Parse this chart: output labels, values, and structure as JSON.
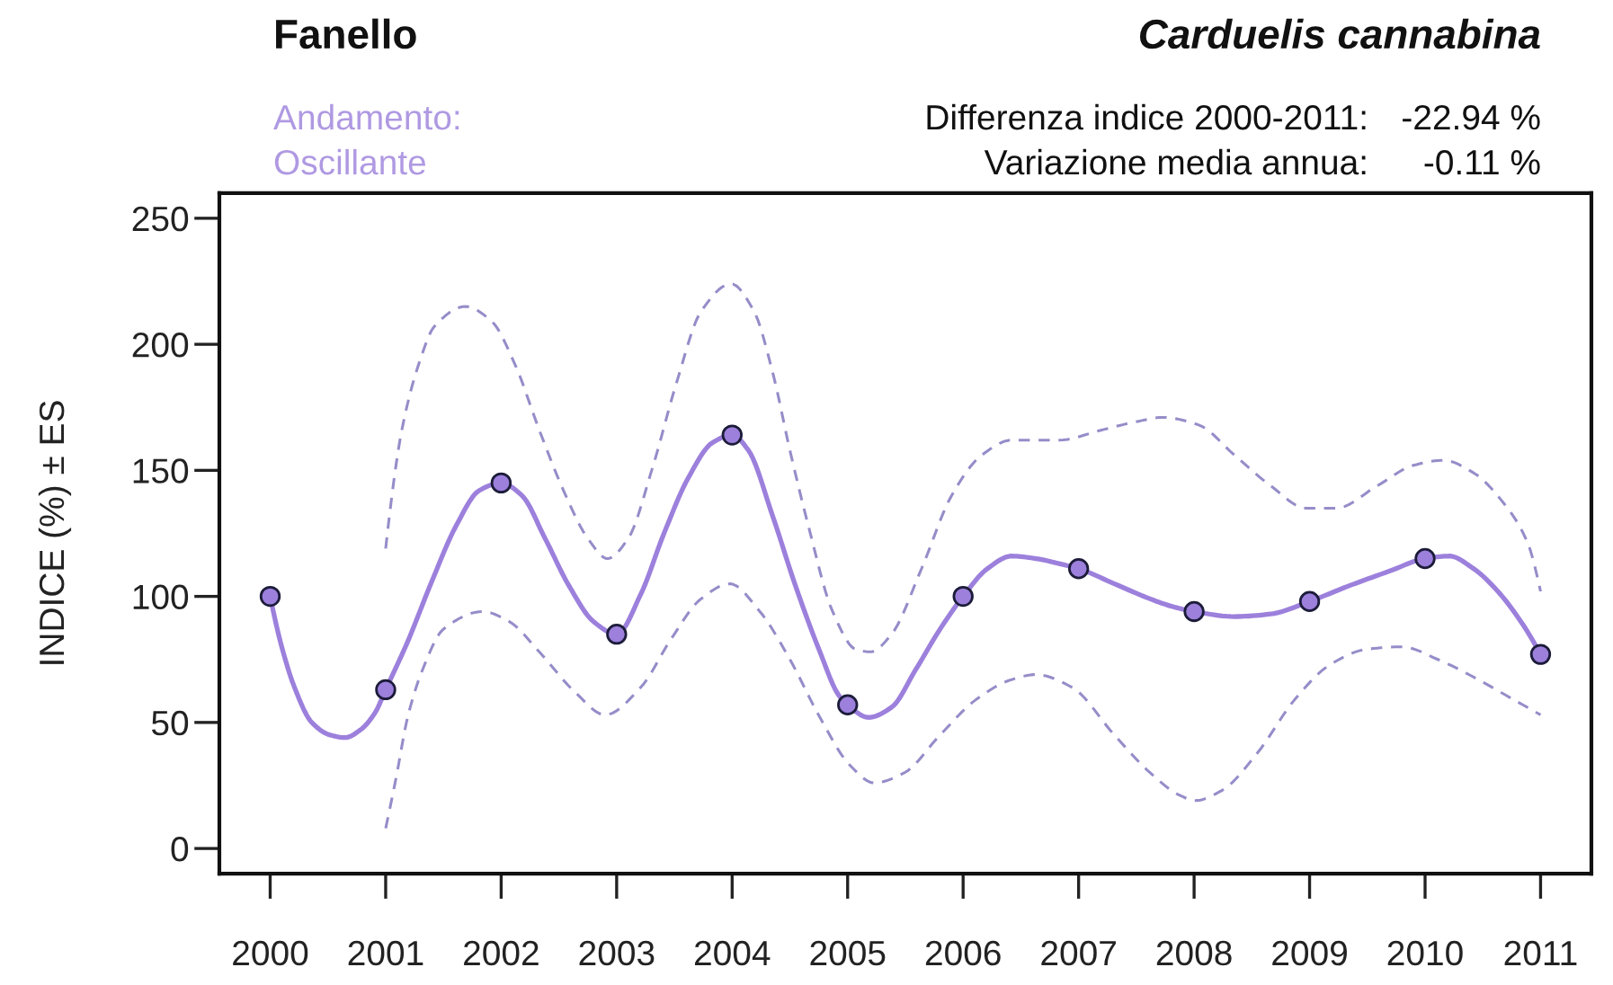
{
  "chart_data": {
    "type": "line",
    "title": "Fanello",
    "subtitle": "Carduelis cannabina",
    "ylabel": "INDICE (%) ± ES",
    "annotations": [
      "Andamento:",
      "Oscillante",
      "Differenza indice 2000-2011:",
      "-22.94 %",
      "Variazione media annua:",
      "-0.11 %"
    ],
    "x": [
      2000,
      2001,
      2002,
      2003,
      2004,
      2005,
      2006,
      2007,
      2008,
      2009,
      2010,
      2011
    ],
    "series": [
      {
        "color": "#9c80dc",
        "line_style": "solid",
        "x": [
          2000.0,
          2000.1,
          2000.21,
          2000.36,
          2000.52,
          2000.65,
          2000.78,
          2000.91,
          2001.0,
          2001.19,
          2001.4,
          2001.61,
          2001.81,
          2002.0,
          2002.18,
          2002.38,
          2002.59,
          2002.8,
          2003.0,
          2003.21,
          2003.41,
          2003.62,
          2003.83,
          2004.0,
          2004.14,
          2004.35,
          2004.55,
          2004.76,
          2004.92,
          2005.0,
          2005.18,
          2005.38,
          2005.59,
          2005.8,
          2006.0,
          2006.21,
          2006.42,
          2006.63,
          2006.83,
          2007.0,
          2007.31,
          2007.62,
          2007.81,
          2008.0,
          2008.35,
          2008.66,
          2009.0,
          2009.33,
          2009.69,
          2010.0,
          2010.21,
          2010.42,
          2010.63,
          2010.83,
          2011.0
        ],
        "values": [
          100,
          80,
          64,
          50,
          45,
          44,
          47,
          54,
          63,
          82,
          106,
          128,
          142,
          145,
          140,
          123,
          104,
          90,
          85,
          101,
          125,
          147,
          161,
          164,
          158,
          132,
          104,
          78,
          61,
          57,
          52,
          56,
          71,
          87,
          100,
          111,
          116,
          115,
          113,
          111,
          105,
          99,
          96,
          94,
          92,
          93,
          98,
          104,
          110,
          115,
          116,
          111,
          102,
          90,
          77
        ]
      },
      {
        "type": "scatter",
        "color": "#9c80dc",
        "marker": "circle",
        "values": [
          100,
          63,
          145,
          85,
          164,
          57,
          100,
          111,
          94,
          98,
          115,
          77
        ]
      },
      {
        "color": "#958dc9",
        "line_style": "dashed",
        "x": [
          2001.0,
          2001.14,
          2001.3,
          2001.42,
          2001.69,
          2001.92,
          2002.12,
          2002.33,
          2002.54,
          2002.75,
          2002.92,
          2003.1,
          2003.31,
          2003.52,
          2003.73,
          2003.99,
          2004.19,
          2004.35,
          2004.5,
          2004.66,
          2004.87,
          2005.07,
          2005.2,
          2005.38,
          2005.64,
          2005.9,
          2006.16,
          2006.42,
          2006.83,
          2007.2,
          2007.47,
          2007.73,
          2008.04,
          2008.35,
          2008.66,
          2008.97,
          2009.23,
          2009.59,
          2009.9,
          2010.16,
          2010.42,
          2010.68,
          2010.89,
          2011.0
        ],
        "values": [
          119,
          166,
          194,
          207,
          215,
          209,
          192,
          166,
          142,
          123,
          115,
          123,
          151,
          185,
          213,
          224,
          213,
          189,
          158,
          128,
          94,
          79,
          78,
          85,
          111,
          140,
          156,
          162,
          162,
          166,
          169,
          171,
          168,
          156,
          144,
          135,
          135,
          144,
          152,
          154,
          149,
          137,
          121,
          102
        ]
      },
      {
        "color": "#958dc9",
        "line_style": "dashed",
        "x": [
          2001.0,
          2001.09,
          2001.19,
          2001.32,
          2001.5,
          2001.84,
          2002.07,
          2002.33,
          2002.64,
          2002.9,
          2003.21,
          2003.47,
          2003.73,
          2003.98,
          2004.24,
          2004.5,
          2004.76,
          2005.02,
          2005.23,
          2005.49,
          2005.8,
          2006.11,
          2006.42,
          2006.63,
          2006.94,
          2007.31,
          2007.62,
          2007.88,
          2008.01,
          2008.24,
          2008.55,
          2008.87,
          2009.18,
          2009.49,
          2009.8,
          2010.11,
          2010.42,
          2010.73,
          2011.0
        ],
        "values": [
          8,
          28,
          52,
          71,
          87,
          94,
          90,
          78,
          62,
          53,
          64,
          83,
          99,
          105,
          94,
          75,
          52,
          33,
          26,
          30,
          45,
          59,
          67,
          69,
          64,
          45,
          30,
          21,
          19,
          23,
          38,
          59,
          73,
          79,
          80,
          75,
          68,
          60,
          53
        ]
      }
    ],
    "xlim": [
      1999.56,
      2011.44
    ],
    "ylim": [
      -10,
      260
    ],
    "xticks": [
      2000,
      2001,
      2002,
      2003,
      2004,
      2005,
      2006,
      2007,
      2008,
      2009,
      2010,
      2011
    ],
    "yticks": [
      0,
      50,
      100,
      150,
      200,
      250
    ]
  }
}
